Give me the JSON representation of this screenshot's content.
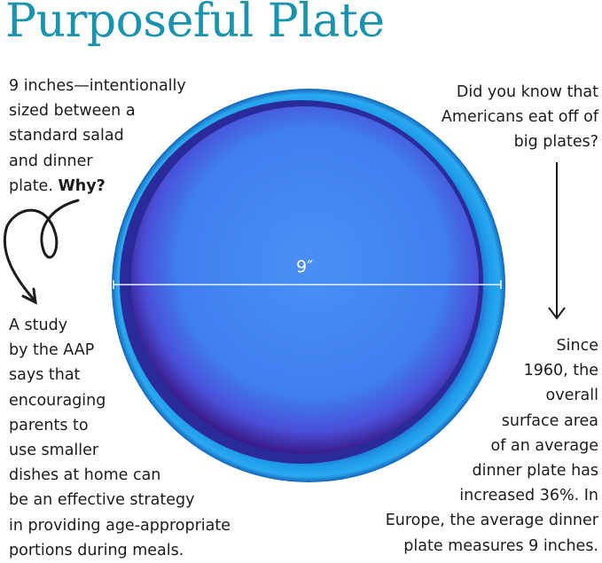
{
  "title": "Purposeful Plate",
  "left_top": {
    "lines": [
      "9 inches—intentionally",
      "sized between a",
      "standard salad",
      "and dinner"
    ],
    "last_line": "plate.",
    "emphasis": "Why?"
  },
  "left_bottom": {
    "lines": [
      "A study",
      "by the AAP",
      "says that",
      "encouraging",
      "parents to",
      "use smaller",
      "dishes at home can",
      "be an effective strategy",
      "in providing age-appropriate",
      "portions during meals."
    ]
  },
  "right_top": {
    "lines": [
      "Did you know that",
      "Americans eat off of",
      "big plates?"
    ]
  },
  "right_bottom": {
    "lines": [
      "Since",
      "1960, the",
      "overall",
      "surface area",
      "of an average",
      "dinner plate has",
      "increased 36%. In",
      "Europe, the average dinner",
      "plate measures 9 inches."
    ]
  },
  "plate": {
    "diameter_label": "9″",
    "colors": {
      "rim": "#1e8fe0",
      "center": "#3b7ff0",
      "shadow": "#3a1a9a"
    }
  },
  "accent_color": "#1a93b0"
}
